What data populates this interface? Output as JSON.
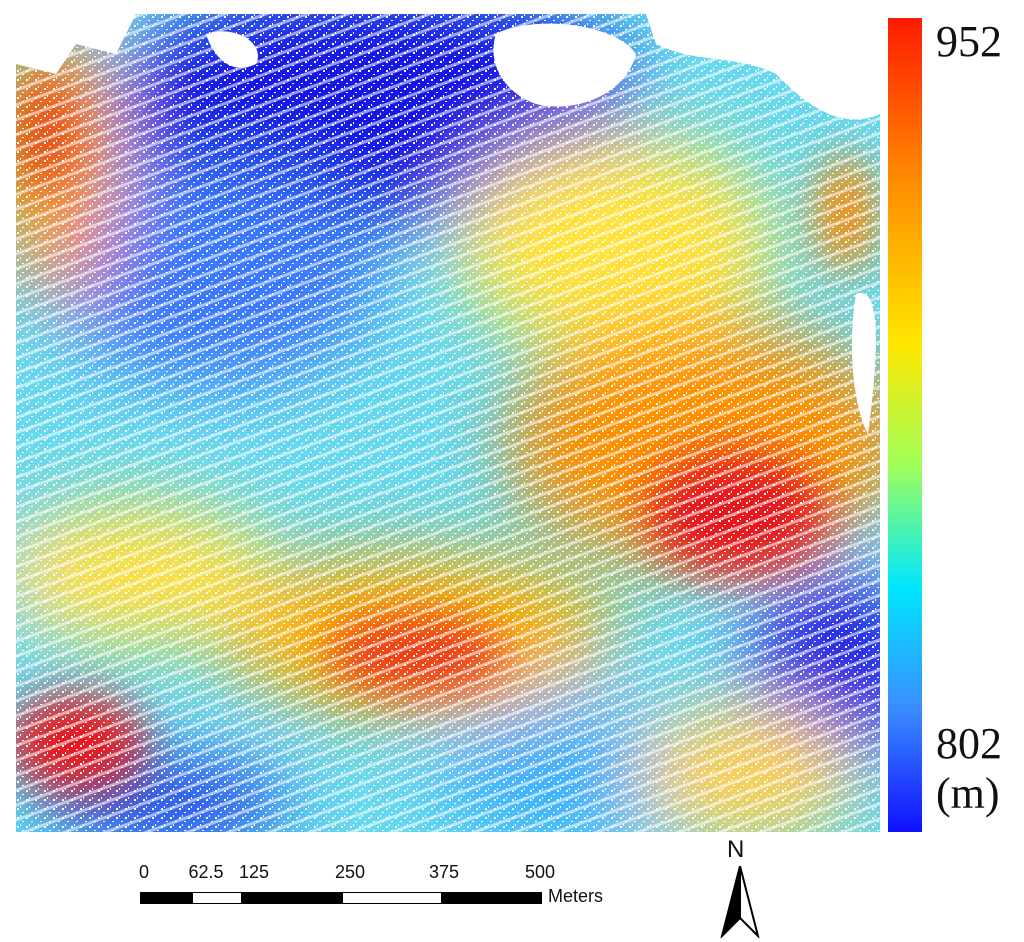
{
  "map": {
    "legend": {
      "max_label": "952",
      "min_label": "802",
      "unit_label": "(m)",
      "colors": [
        "#ff1a00",
        "#ff8c00",
        "#ffe600",
        "#9fff5a",
        "#00e6ff",
        "#3a8cff",
        "#1010ff"
      ]
    },
    "scale_bar": {
      "tick_labels": [
        "0",
        "62.5",
        "125",
        "250",
        "375",
        "500"
      ],
      "unit_label": "Meters"
    },
    "north_arrow": {
      "label": "N"
    },
    "elevation_colors": {
      "high": "#e8141a",
      "mid_high": "#ff8a00",
      "mid": "#ffe23a",
      "mid_low": "#7fe6b0",
      "low_mid": "#41c8ff",
      "low": "#2450ff",
      "lowest": "#1212e0"
    }
  }
}
